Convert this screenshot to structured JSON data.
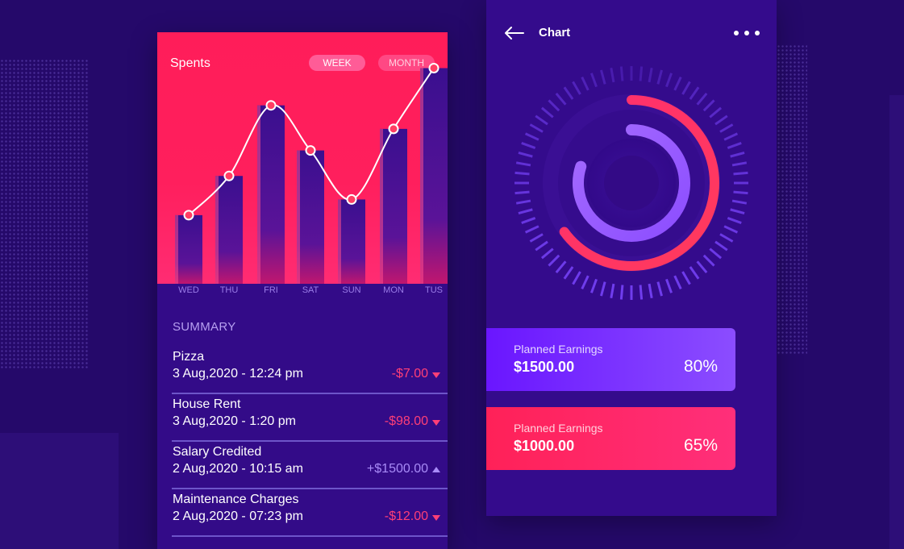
{
  "spents_card": {
    "title": "Spents",
    "tabs": {
      "week": "WEEK",
      "month": "MONTH"
    },
    "selected_tab": "WEEK",
    "colors": {
      "accent": "#ff1d59",
      "bar": "#3a0f8f",
      "line": "#ffffff"
    },
    "chart_data": {
      "type": "bar",
      "categories": [
        "WED",
        "THU",
        "FRI",
        "SAT",
        "SUN",
        "MON",
        "TUS"
      ],
      "values": [
        35,
        55,
        91,
        68,
        43,
        79,
        110
      ],
      "ylim": [
        0,
        125
      ]
    }
  },
  "summary": {
    "title": "SUMMARY",
    "transactions": [
      {
        "name": "Pizza",
        "date": "3 Aug,2020 - 12:24 pm",
        "amount": "-$7.00",
        "direction": "down"
      },
      {
        "name": "House Rent",
        "date": "3 Aug,2020 - 1:20 pm",
        "amount": "-$98.00",
        "direction": "down"
      },
      {
        "name": "Salary Credited",
        "date": "2 Aug,2020 - 10:15 am",
        "amount": "+$1500.00",
        "direction": "up"
      },
      {
        "name": "Maintenance Charges",
        "date": "2 Aug,2020 - 07:23 pm",
        "amount": "-$12.00",
        "direction": "down"
      }
    ],
    "colors": {
      "negative": "#ff3f77",
      "positive": "#a88bf7"
    }
  },
  "chart_card": {
    "title": "Chart",
    "back_icon": "arrow-left-icon",
    "more_icon": "more-horizontal-icon",
    "rings": {
      "outer_progress": 0.65,
      "inner_progress": 0.8
    },
    "earnings": [
      {
        "label": "Planned Earnings",
        "amount": "$1500.00",
        "percent": "80%",
        "color": "#7a2dff"
      },
      {
        "label": "Planned Earnings",
        "amount": "$1000.00",
        "percent": "65%",
        "color": "#ff2262"
      }
    ]
  }
}
